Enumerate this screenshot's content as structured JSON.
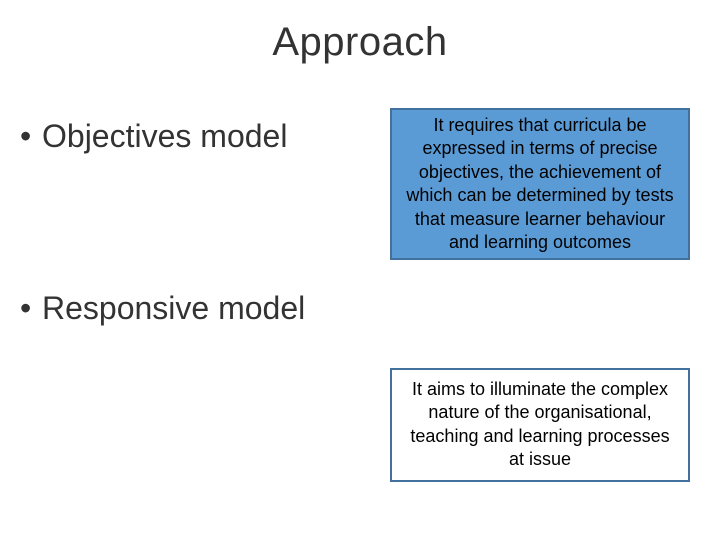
{
  "slide": {
    "title": "Approach",
    "bullets": [
      {
        "marker": "•",
        "text": "Objectives model"
      },
      {
        "marker": "•",
        "text": "Responsive model"
      }
    ],
    "boxes": [
      {
        "text": "It requires that curricula be expressed in terms of precise objectives, the achievement of which can be determined by tests that measure learner behaviour and learning outcomes",
        "fill_color": "#5b9bd5",
        "border_color": "#41719c",
        "text_color": "#000000",
        "font_size": 18,
        "border_width": 2
      },
      {
        "text": "It aims to illuminate the complex nature of the organisational, teaching and learning processes at issue",
        "fill_color": "#ffffff",
        "border_color": "#41719c",
        "text_color": "#000000",
        "font_size": 18,
        "border_width": 2
      }
    ],
    "background_color": "#ffffff",
    "title_fontsize": 40,
    "bullet_fontsize": 32,
    "title_color": "#333333",
    "bullet_color": "#333333"
  }
}
